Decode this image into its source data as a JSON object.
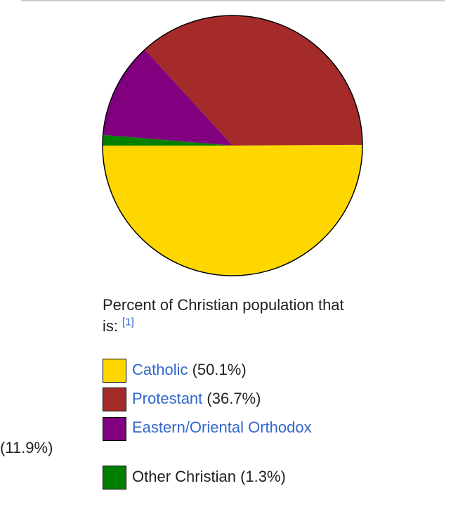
{
  "chart_data": {
    "type": "pie",
    "title": "",
    "caption": "Percent of Christian population that is:",
    "caption_ref": "[1]",
    "start_direction": "west",
    "rotation": "counterclockwise",
    "slices": [
      {
        "label": "Catholic",
        "value": 50.1,
        "pct_label": "(50.1%)",
        "color": "#FFD700",
        "linked": true
      },
      {
        "label": "Protestant",
        "value": 36.7,
        "pct_label": "(36.7%)",
        "color": "#A52A2A",
        "linked": true
      },
      {
        "label": "Eastern/Oriental Orthodox",
        "value": 11.9,
        "pct_label": "(11.9%)",
        "color": "#800080",
        "linked": true
      },
      {
        "label": "Other Christian",
        "value": 1.3,
        "pct_label": "(1.3%)",
        "color": "#008000",
        "linked": false
      }
    ]
  }
}
